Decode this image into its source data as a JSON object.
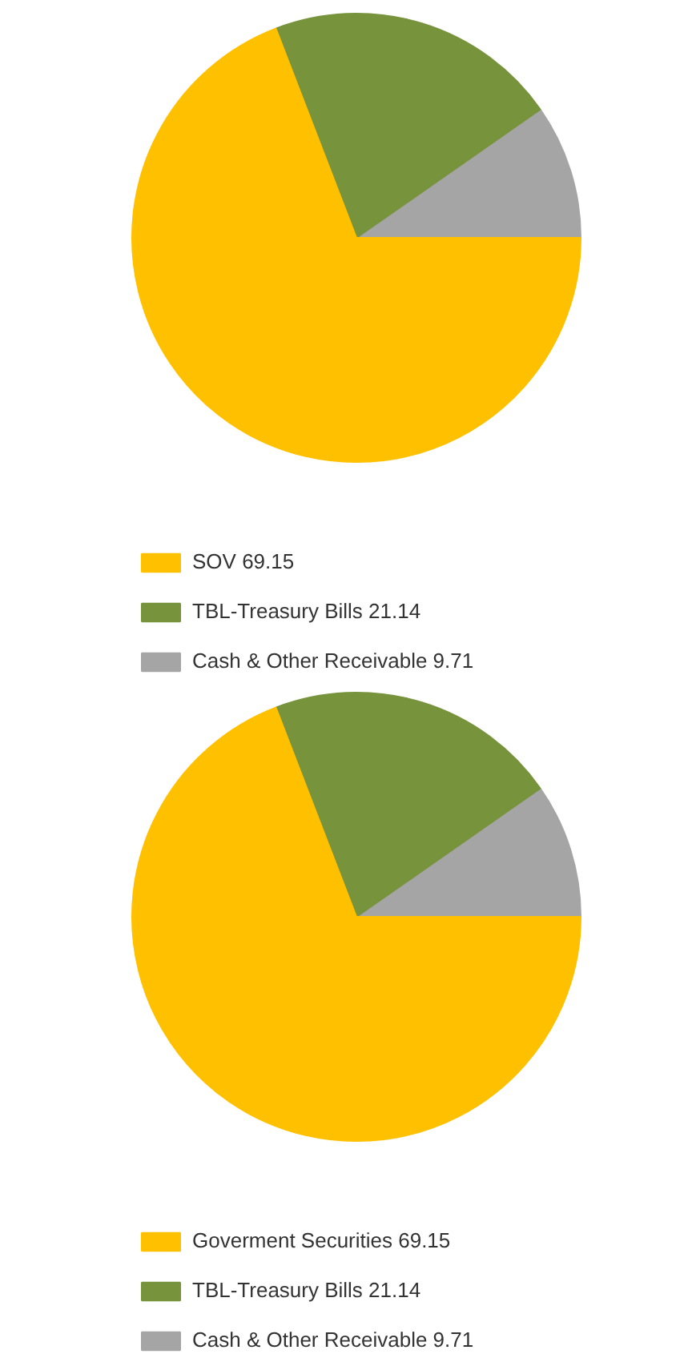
{
  "chart_data": [
    {
      "type": "pie",
      "categories": [
        "SOV 69.15",
        "TBL-Treasury Bills 21.14",
        "Cash & Other Receivable 9.71"
      ],
      "values": [
        69.15,
        21.14,
        9.71
      ],
      "colors": [
        "#ffc000",
        "#77933c",
        "#a5a5a5"
      ],
      "legend": "bottom"
    },
    {
      "type": "pie",
      "categories": [
        "Goverment Securities 69.15",
        "TBL-Treasury Bills 21.14",
        "Cash & Other Receivable 9.71"
      ],
      "values": [
        69.15,
        21.14,
        9.71
      ],
      "colors": [
        "#ffc000",
        "#77933c",
        "#a5a5a5"
      ],
      "legend": "bottom"
    }
  ]
}
